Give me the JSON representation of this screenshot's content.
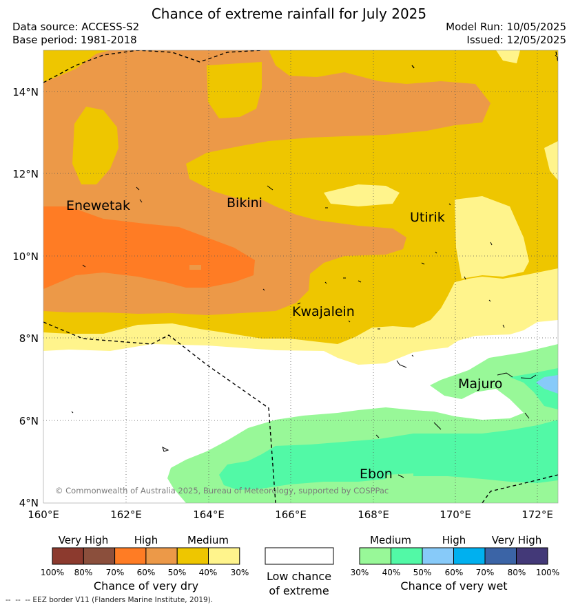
{
  "header": {
    "title": "Chance of extreme rainfall for July 2025",
    "data_source": "Data source: ACCESS-S2",
    "base_period": "Base period: 1981-2018",
    "model_run": "Model Run: 10/05/2025",
    "issued": "Issued: 12/05/2025"
  },
  "map": {
    "lat_labels": [
      "14°N",
      "12°N",
      "10°N",
      "8°N",
      "6°N",
      "4°N"
    ],
    "lon_labels": [
      "160°E",
      "162°E",
      "164°E",
      "166°E",
      "168°E",
      "170°E",
      "172°E"
    ],
    "places": [
      "Enewetak",
      "Bikini",
      "Utirik",
      "Kwajalein",
      "Majuro",
      "Ebon"
    ],
    "copyright": "© Commonwealth of Australia 2025, Bureau of Meteorology, supported by COSPPac"
  },
  "legend": {
    "dry": {
      "categories": [
        "Very High",
        "High",
        "Medium"
      ],
      "ticks": [
        "100%",
        "80%",
        "70%",
        "60%",
        "50%",
        "40%",
        "30%"
      ],
      "colors": [
        "#8c3a2e",
        "#8b4f3c",
        "#ff7c24",
        "#ec9948",
        "#eec600",
        "#fff48c"
      ],
      "title": "Chance of very dry"
    },
    "neutral": {
      "title_line1": "Low chance",
      "title_line2": "of extreme",
      "color": "#ffffff"
    },
    "wet": {
      "categories": [
        "Medium",
        "High",
        "Very High"
      ],
      "ticks": [
        "30%",
        "40%",
        "50%",
        "60%",
        "70%",
        "80%",
        "100%"
      ],
      "colors": [
        "#98f898",
        "#52f9a6",
        "#87caf9",
        "#00b0ef",
        "#3b64a6",
        "#433978"
      ],
      "title": "Chance of very wet"
    }
  },
  "footer": {
    "eez_note": "--  --  -- EEZ border V11 (Flanders Marine Institute, 2019)."
  }
}
